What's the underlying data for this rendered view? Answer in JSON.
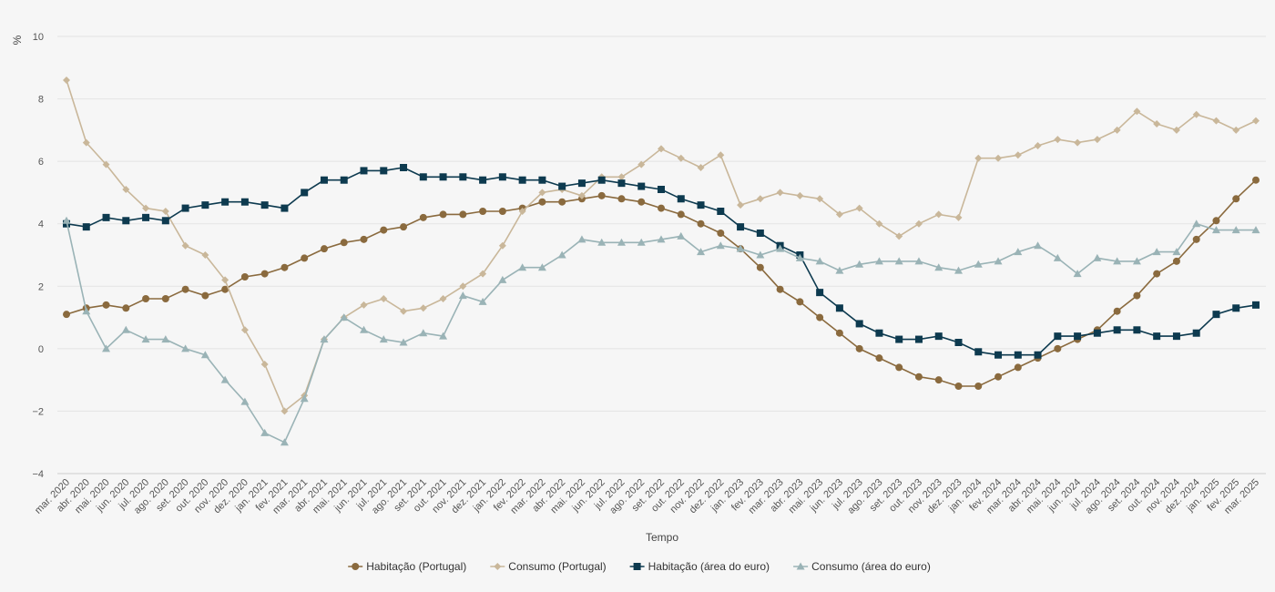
{
  "chart_data": {
    "type": "line",
    "ylabel": "%",
    "xlabel": "Tempo",
    "ylim": [
      -4,
      10
    ],
    "yticks": [
      -4,
      -2,
      0,
      2,
      4,
      6,
      8,
      10
    ],
    "grid": true,
    "legend_position": "bottom-center",
    "categories": [
      "mar. 2020",
      "abr. 2020",
      "mai. 2020",
      "jun. 2020",
      "jul. 2020",
      "ago. 2020",
      "set. 2020",
      "out. 2020",
      "nov. 2020",
      "dez. 2020",
      "jan. 2021",
      "fev. 2021",
      "mar. 2021",
      "abr. 2021",
      "mai. 2021",
      "jun. 2021",
      "jul. 2021",
      "ago. 2021",
      "set. 2021",
      "out. 2021",
      "nov. 2021",
      "dez. 2021",
      "jan. 2022",
      "fev. 2022",
      "mar. 2022",
      "abr. 2022",
      "mai. 2022",
      "jun. 2022",
      "jul. 2022",
      "ago. 2022",
      "set. 2022",
      "out. 2022",
      "nov. 2022",
      "dez. 2022",
      "jan. 2023",
      "fev. 2023",
      "mar. 2023",
      "abr. 2023",
      "mai. 2023",
      "jun. 2023",
      "jul. 2023",
      "ago. 2023",
      "set. 2023",
      "out. 2023",
      "nov. 2023",
      "dez. 2023",
      "jan. 2024",
      "fev. 2024",
      "mar. 2024",
      "abr. 2024",
      "mai. 2024",
      "jun. 2024",
      "jul. 2024",
      "ago. 2024",
      "set. 2024",
      "out. 2024",
      "nov. 2024",
      "dez. 2024",
      "jan. 2025",
      "fev. 2025",
      "mar. 2025"
    ],
    "series": [
      {
        "name": "Habitação (Portugal)",
        "color": "#8a6a3e",
        "marker": "circle",
        "values": [
          1.1,
          1.3,
          1.4,
          1.3,
          1.6,
          1.6,
          1.9,
          1.7,
          1.9,
          2.3,
          2.4,
          2.6,
          2.9,
          3.2,
          3.4,
          3.5,
          3.8,
          3.9,
          4.2,
          4.3,
          4.3,
          4.4,
          4.4,
          4.5,
          4.7,
          4.7,
          4.8,
          4.9,
          4.8,
          4.7,
          4.5,
          4.3,
          4.0,
          3.7,
          3.2,
          2.6,
          1.9,
          1.5,
          1.0,
          0.5,
          0.0,
          -0.3,
          -0.6,
          -0.9,
          -1.0,
          -1.2,
          -1.2,
          -0.9,
          -0.6,
          -0.3,
          0.0,
          0.3,
          0.6,
          1.2,
          1.7,
          2.4,
          2.8,
          3.5,
          4.1,
          4.8,
          5.4
        ]
      },
      {
        "name": "Consumo (Portugal)",
        "color": "#c9b79a",
        "marker": "diamond",
        "values": [
          8.6,
          6.6,
          5.9,
          5.1,
          4.5,
          4.4,
          3.3,
          3.0,
          2.2,
          0.6,
          -0.5,
          -2.0,
          -1.5,
          0.3,
          1.0,
          1.4,
          1.6,
          1.2,
          1.3,
          1.6,
          2.0,
          2.4,
          3.3,
          4.4,
          5.0,
          5.1,
          4.9,
          5.5,
          5.5,
          5.9,
          6.4,
          6.1,
          5.8,
          6.2,
          4.6,
          4.8,
          5.0,
          4.9,
          4.8,
          4.3,
          4.5,
          4.0,
          3.6,
          4.0,
          4.3,
          4.2,
          6.1,
          6.1,
          6.2,
          6.5,
          6.7,
          6.6,
          6.7,
          7.0,
          7.6,
          7.2,
          7.0,
          7.5,
          7.3,
          7.0,
          7.3
        ]
      },
      {
        "name": "Habitação (área do euro)",
        "color": "#0d3a4f",
        "marker": "square",
        "values": [
          4.0,
          3.9,
          4.2,
          4.1,
          4.2,
          4.1,
          4.5,
          4.6,
          4.7,
          4.7,
          4.6,
          4.5,
          5.0,
          5.4,
          5.4,
          5.7,
          5.7,
          5.8,
          5.5,
          5.5,
          5.5,
          5.4,
          5.5,
          5.4,
          5.4,
          5.2,
          5.3,
          5.4,
          5.3,
          5.2,
          5.1,
          4.8,
          4.6,
          4.4,
          3.9,
          3.7,
          3.3,
          3.0,
          1.8,
          1.3,
          0.8,
          0.5,
          0.3,
          0.3,
          0.4,
          0.2,
          -0.1,
          -0.2,
          -0.2,
          -0.2,
          0.4,
          0.4,
          0.5,
          0.6,
          0.6,
          0.4,
          0.4,
          0.5,
          1.1,
          1.3,
          1.4
        ]
      },
      {
        "name": "Consumo (área do euro)",
        "color": "#9ab3b6",
        "marker": "triangle",
        "values": [
          4.1,
          1.2,
          0.0,
          0.6,
          0.3,
          0.3,
          0.0,
          -0.2,
          -1.0,
          -1.7,
          -2.7,
          -3.0,
          -1.6,
          0.3,
          1.0,
          0.6,
          0.3,
          0.2,
          0.5,
          0.4,
          1.7,
          1.5,
          2.2,
          2.6,
          2.6,
          3.0,
          3.5,
          3.4,
          3.4,
          3.4,
          3.5,
          3.6,
          3.1,
          3.3,
          3.2,
          3.0,
          3.2,
          2.9,
          2.8,
          2.5,
          2.7,
          2.8,
          2.8,
          2.8,
          2.6,
          2.5,
          2.7,
          2.8,
          3.1,
          3.3,
          2.9,
          2.4,
          2.9,
          2.8,
          2.8,
          3.1,
          3.1,
          4.0,
          3.8,
          3.8,
          3.8
        ]
      }
    ]
  }
}
